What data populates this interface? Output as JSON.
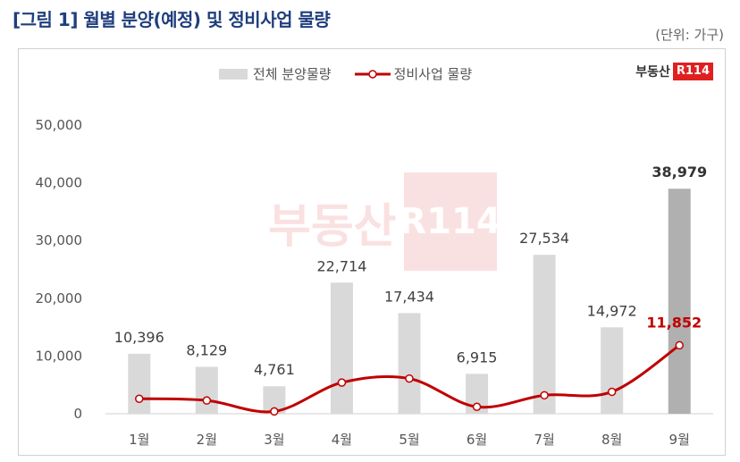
{
  "title": "[그림 1] 월별 분양(예정) 및 정비사업 물량",
  "unit_note": "(단위: 가구)",
  "brand": {
    "text": "부동산",
    "box": "R114"
  },
  "chart_data": {
    "type": "bar",
    "categories": [
      "1월",
      "2월",
      "3월",
      "4월",
      "5월",
      "6월",
      "7월",
      "8월",
      "9월"
    ],
    "series": [
      {
        "name": "전체 분양물량",
        "type": "bar",
        "color": "#d9d9d9",
        "highlight_color": "#b0b0b0",
        "values": [
          10396,
          8129,
          4761,
          22714,
          17434,
          6915,
          27534,
          14972,
          38979
        ],
        "labels": [
          "10,396",
          "8,129",
          "4,761",
          "22,714",
          "17,434",
          "6,915",
          "27,534",
          "14,972",
          "38,979"
        ]
      },
      {
        "name": "정비사업 물량",
        "type": "line",
        "color": "#c00000",
        "values": [
          2600,
          2300,
          400,
          5400,
          6100,
          1200,
          3200,
          3800,
          11852
        ],
        "last_label": "11,852"
      }
    ],
    "y_ticks": [
      "0",
      "10,000",
      "20,000",
      "30,000",
      "40,000",
      "50,000"
    ],
    "ylim": [
      0,
      50000
    ],
    "legend_position": "top-center",
    "grid": false
  }
}
